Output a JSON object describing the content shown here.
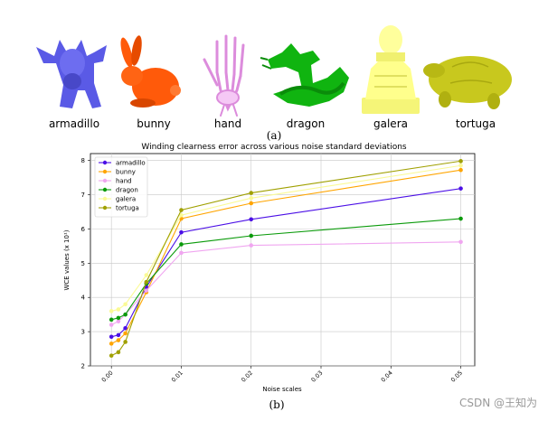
{
  "figure": {
    "caption_a": "(a)",
    "caption_b": "(b)",
    "watermark": "CSDN @王知为",
    "models": [
      {
        "label": "armadillo",
        "color": "#5a5ae6",
        "icon": "armadillo-mesh-icon"
      },
      {
        "label": "bunny",
        "color": "#ff5a0a",
        "icon": "bunny-mesh-icon"
      },
      {
        "label": "hand",
        "color": "#f0b4f0",
        "icon": "hand-skeleton-mesh-icon"
      },
      {
        "label": "dragon",
        "color": "#10b410",
        "icon": "dragon-mesh-icon"
      },
      {
        "label": "galera",
        "color": "#ffff8c",
        "icon": "galera-statue-mesh-icon"
      },
      {
        "label": "tortuga",
        "color": "#c8c81e",
        "icon": "tortoise-mesh-icon"
      }
    ]
  },
  "chart_data": {
    "type": "line",
    "title": "Winding clearness error across various noise standard deviations",
    "xlabel": "Noise scales",
    "ylabel": "WCE values (x 10¹)",
    "xlim": [
      -0.003,
      0.052
    ],
    "ylim": [
      2,
      8.2
    ],
    "x_ticks": [
      0.0,
      0.01,
      0.02,
      0.03,
      0.04,
      0.05
    ],
    "x_tick_labels": [
      "0.00",
      "0.01",
      "0.02",
      "0.03",
      "0.04",
      "0.05"
    ],
    "y_ticks": [
      2,
      3,
      4,
      5,
      6,
      7,
      8
    ],
    "grid": true,
    "legend_position": "top-left",
    "x": [
      0.0,
      0.001,
      0.002,
      0.005,
      0.01,
      0.02,
      0.05
    ],
    "series": [
      {
        "name": "armadillo",
        "color": "#4b0fe6",
        "values": [
          2.85,
          2.9,
          3.1,
          4.3,
          5.9,
          6.28,
          7.18
        ]
      },
      {
        "name": "bunny",
        "color": "#ffa500",
        "values": [
          2.65,
          2.75,
          2.95,
          4.15,
          6.3,
          6.75,
          7.72
        ]
      },
      {
        "name": "hand",
        "color": "#f0a6f0",
        "values": [
          3.2,
          3.3,
          3.5,
          4.2,
          5.3,
          5.52,
          5.62
        ]
      },
      {
        "name": "dragon",
        "color": "#0a9a0a",
        "values": [
          3.35,
          3.4,
          3.5,
          4.4,
          5.55,
          5.8,
          6.3
        ]
      },
      {
        "name": "galera",
        "color": "#fafa96",
        "values": [
          3.6,
          3.65,
          3.8,
          4.65,
          6.4,
          6.9,
          7.85
        ]
      },
      {
        "name": "tortuga",
        "color": "#a0a000",
        "values": [
          2.3,
          2.4,
          2.7,
          4.45,
          6.55,
          7.05,
          7.98
        ]
      }
    ]
  }
}
